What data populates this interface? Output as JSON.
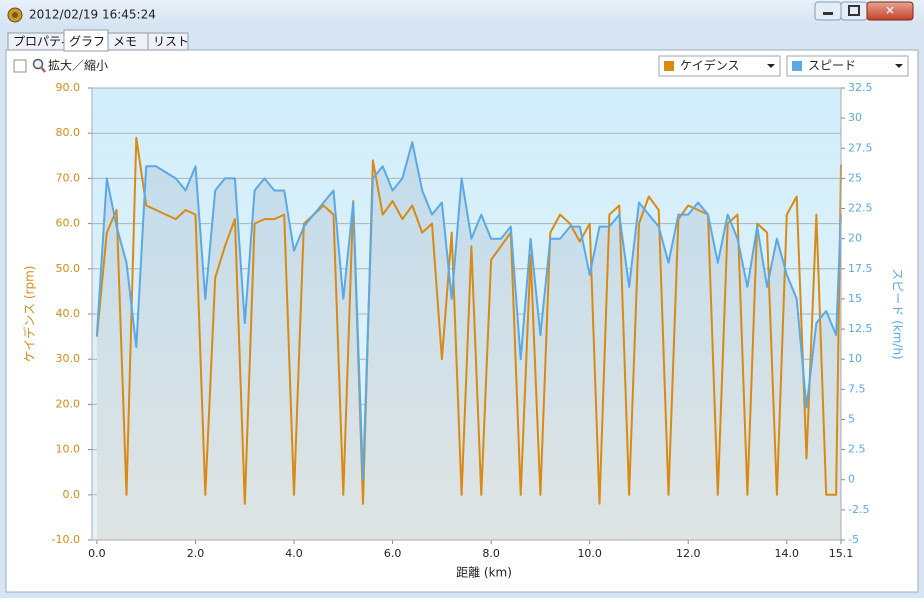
{
  "window": {
    "title": "2012/02/19 16:45:24"
  },
  "tabs": [
    "プロパティ",
    "グラフ",
    "メモ",
    "リスト"
  ],
  "toolbar": {
    "zoom_label": "拡大／縮小"
  },
  "chart_data": {
    "type": "line",
    "x_label": "距離 (km)",
    "y_label": "ケイデンス (rpm)",
    "y2_label": "スピード (km/h)",
    "x": [
      0.0,
      0.2,
      0.4,
      0.6,
      0.8,
      1.0,
      1.2,
      1.4,
      1.6,
      1.8,
      2.0,
      2.2,
      2.4,
      2.6,
      2.8,
      3.0,
      3.2,
      3.4,
      3.6,
      3.8,
      4.0,
      4.2,
      4.4,
      4.6,
      4.8,
      5.0,
      5.2,
      5.4,
      5.6,
      5.8,
      6.0,
      6.2,
      6.4,
      6.6,
      6.8,
      7.0,
      7.2,
      7.4,
      7.6,
      7.8,
      8.0,
      8.2,
      8.4,
      8.6,
      8.8,
      9.0,
      9.2,
      9.4,
      9.6,
      9.8,
      10.0,
      10.2,
      10.4,
      10.6,
      10.8,
      11.0,
      11.2,
      11.4,
      11.6,
      11.8,
      12.0,
      12.2,
      12.4,
      12.6,
      12.8,
      13.0,
      13.2,
      13.4,
      13.6,
      13.8,
      14.0,
      14.2,
      14.4,
      14.6,
      14.8,
      15.0,
      15.1
    ],
    "xlim": [
      -0.1,
      15.1
    ],
    "xticks": [
      {
        "value": 0,
        "label": "0.0"
      },
      {
        "value": 2,
        "label": "2.0"
      },
      {
        "value": 4,
        "label": "4.0"
      },
      {
        "value": 6,
        "label": "6.0"
      },
      {
        "value": 8,
        "label": "8.0"
      },
      {
        "value": 10,
        "label": "10.0"
      },
      {
        "value": 12,
        "label": "12.0"
      },
      {
        "value": 14,
        "label": "14.0"
      },
      15.1
    ],
    "ylim": [
      -10,
      90
    ],
    "yticks": [
      {
        "value": 90,
        "label": "90.0"
      },
      {
        "value": 80,
        "label": "80.0"
      },
      {
        "value": 70,
        "label": "70.0"
      },
      {
        "value": 60,
        "label": "60.0"
      },
      {
        "value": 50,
        "label": "50.0"
      },
      {
        "value": 40,
        "label": "40.0"
      },
      {
        "value": 30,
        "label": "30.0"
      },
      {
        "value": 20,
        "label": "20.0"
      },
      {
        "value": 10,
        "label": "10.0"
      },
      {
        "value": 0,
        "label": "0.0"
      },
      {
        "value": -10,
        "label": "-10.0"
      }
    ],
    "y2lim": [
      -5,
      32.5
    ],
    "y2ticks": [
      32.5,
      30,
      27.5,
      25,
      22.5,
      20,
      17.5,
      15,
      12.5,
      10,
      7.5,
      5,
      2.5,
      0,
      -2.5,
      -5
    ],
    "grid": true,
    "series": [
      {
        "name": "ケイデンス",
        "color": "#d98a14",
        "values": [
          35,
          58,
          63,
          0,
          79,
          64,
          63,
          62,
          61,
          63,
          62,
          0,
          48,
          55,
          61,
          -2,
          60,
          61,
          61,
          62,
          0,
          60,
          62,
          64,
          62,
          0,
          65,
          -2,
          74,
          62,
          65,
          61,
          64,
          58,
          60,
          30,
          58,
          0,
          55,
          0,
          52,
          55,
          58,
          0,
          53,
          0,
          58,
          62,
          60,
          56,
          60,
          -2,
          62,
          64,
          0,
          60,
          66,
          63,
          0,
          61,
          64,
          63,
          62,
          0,
          60,
          62,
          0,
          60,
          58,
          0,
          62,
          66,
          8,
          62,
          0,
          0,
          73
        ]
      },
      {
        "name": "スピード",
        "color": "#5aa9e6",
        "axis": "y2",
        "area": true,
        "values": [
          12,
          25,
          21,
          18,
          11,
          26,
          26,
          25.5,
          25,
          24,
          26,
          15,
          24,
          25,
          25,
          13,
          24,
          25,
          24,
          24,
          19,
          21,
          22,
          23,
          24,
          15,
          23,
          0,
          25,
          26,
          24,
          25,
          28,
          24,
          22,
          23,
          15,
          25,
          20,
          22,
          20,
          20,
          21,
          10,
          20,
          12,
          20,
          20,
          21,
          21,
          17,
          21,
          21,
          22,
          16,
          23,
          22,
          21,
          18,
          22,
          22,
          23,
          22,
          18,
          22,
          20,
          16,
          21,
          16,
          20,
          17,
          15,
          6,
          13,
          14,
          12,
          22
        ]
      }
    ]
  }
}
